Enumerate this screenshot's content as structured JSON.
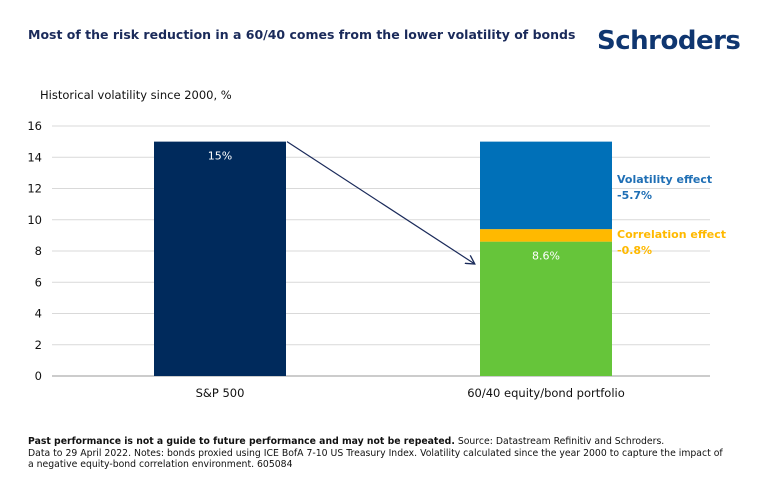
{
  "header": {
    "title": "Most of the risk reduction in a 60/40 comes from the lower volatility of bonds",
    "logo": "Schroders"
  },
  "chart_data": {
    "type": "bar",
    "subtitle": "Historical volatility since 2000, %",
    "ylim": [
      0,
      16
    ],
    "yticks": [
      0,
      2,
      4,
      6,
      8,
      10,
      12,
      14,
      16
    ],
    "grid": true,
    "categories": [
      "S&P 500",
      "60/40 equity/bond portfolio"
    ],
    "bars": [
      {
        "category": "S&P 500",
        "segments": [
          {
            "value": 15,
            "color": "#002a5c",
            "label": "15%"
          }
        ]
      },
      {
        "category": "60/40 equity/bond portfolio",
        "segments": [
          {
            "value": 8.6,
            "color": "#66c53a",
            "label": "8.6%"
          },
          {
            "value": 0.8,
            "color": "#ffb900",
            "label": ""
          },
          {
            "value": 5.6,
            "color": "#0070b8",
            "label": ""
          }
        ]
      }
    ],
    "annotations": [
      {
        "title": "Volatility effect",
        "value": "-5.7%",
        "color": "#1f6fb5"
      },
      {
        "title": "Correlation effect",
        "value": "-0.8%",
        "color": "#ffb900"
      }
    ],
    "arrow": {
      "from": "S&P 500",
      "to": "60/40 equity/bond portfolio",
      "color": "#1a2a5a"
    }
  },
  "footnote": {
    "bold": "Past performance is not a guide to future performance and may not be repeated.",
    "source": " Source: Datastream Refinitiv and Schroders.",
    "notes": "Data to 29 April 2022. Notes: bonds proxied using ICE BofA 7-10 US Treasury Index. Volatility calculated since the year 2000 to capture the impact of a negative equity-bond correlation environment. 605084"
  }
}
